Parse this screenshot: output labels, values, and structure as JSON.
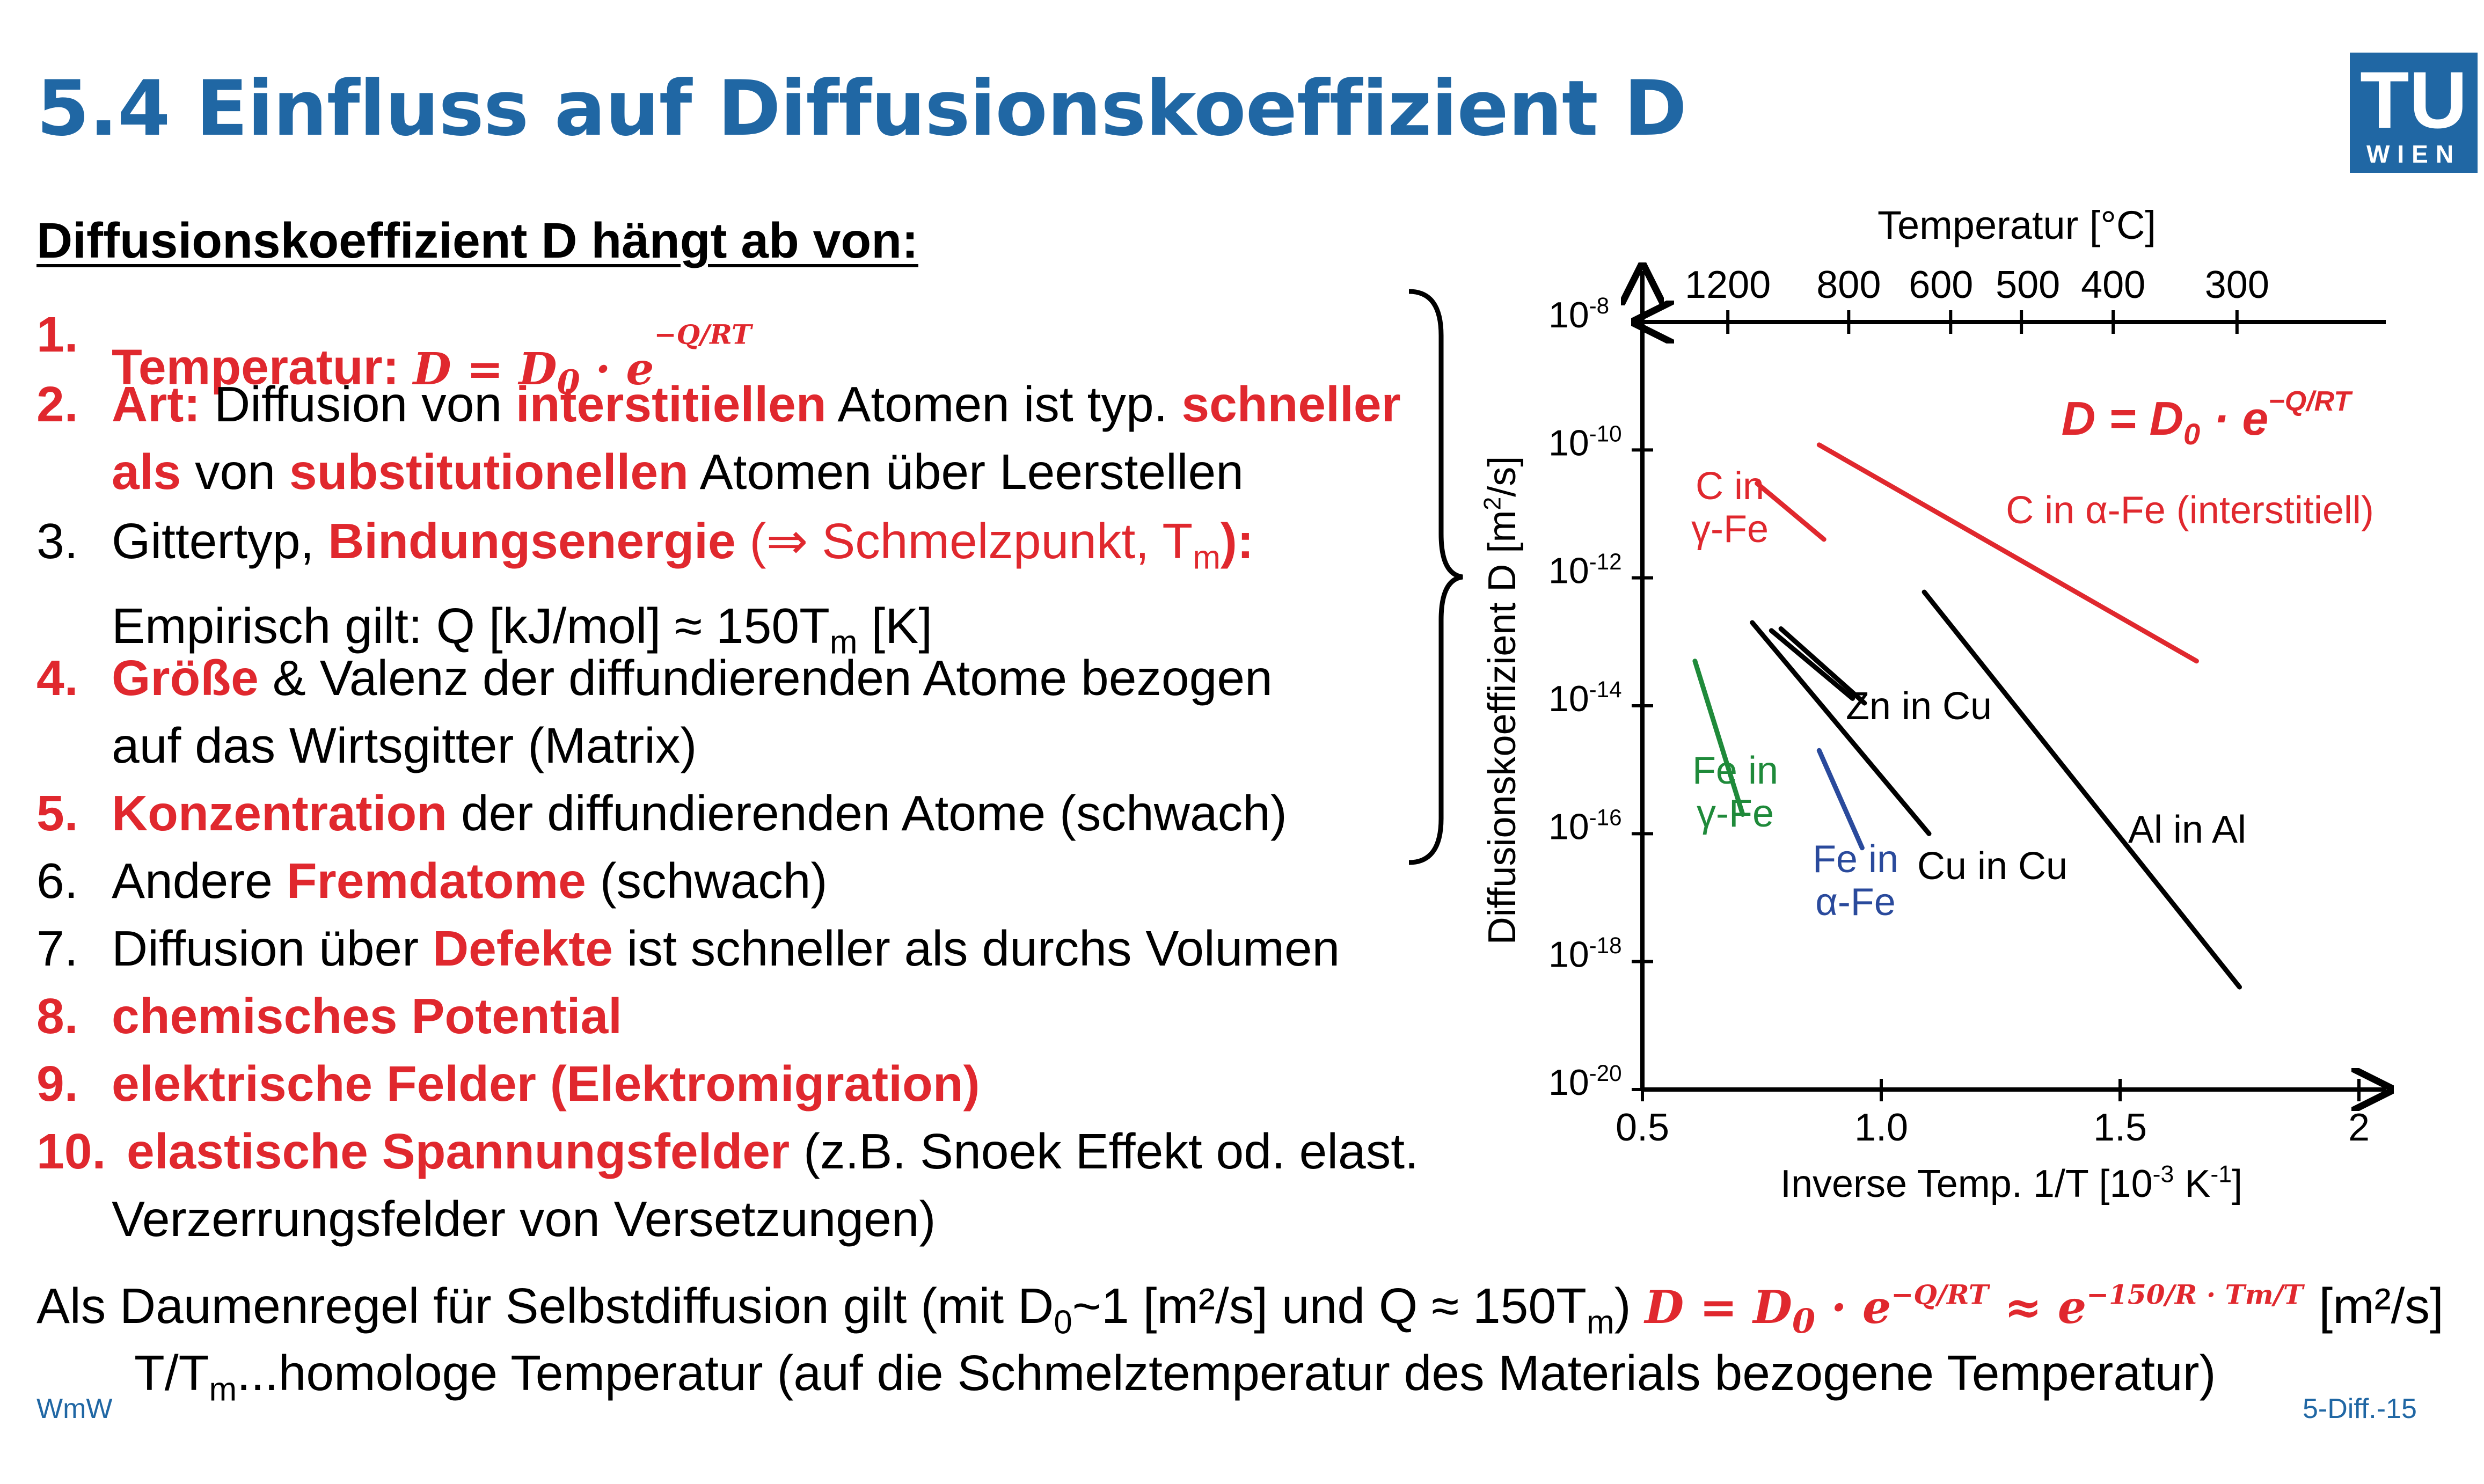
{
  "slide": {
    "title": "5.4 Einfluss auf Diffusionskoeffizient D",
    "logo": {
      "line1": "TU",
      "line2": "WIEN",
      "color": "#2067a4"
    },
    "subheading": "Diffusionskoeffizient D hängt ab von:",
    "colors": {
      "accent_red": "#e0282e",
      "title_blue": "#2067a4"
    }
  },
  "list": {
    "i1": {
      "num": "1.",
      "label": "Temperatur:",
      "formula": "D = D",
      "formula_sub": "0",
      "formula_dot": " · e",
      "exponent": "−Q/RT"
    },
    "i2": {
      "num": "2.",
      "label": "Art:",
      "t1": " Diffusion von ",
      "r1": "interstitiellen",
      "t2": " Atomen ist typ. ",
      "r2": "schneller",
      "r3": "als",
      "t3": " von ",
      "r4": "substitutionellen",
      "t4": " Atomen über Leerstellen"
    },
    "i3": {
      "num": "3.",
      "t1": "Gittertyp, ",
      "r1": "Bindungsenergie",
      "r2": " (⇒ Schmelzpunkt, T",
      "r2sub": "m",
      "r3": "):",
      "l2a": "Empirisch gilt: Q [kJ/mol] ≈ 150T",
      "l2sub": "m",
      "l2b": " [K]"
    },
    "i4": {
      "num": "4.",
      "r1": "Größe",
      "t1": " & Valenz der diffundierenden Atome bezogen",
      "l2": "auf das Wirtsgitter (Matrix)"
    },
    "i5": {
      "num": "5.",
      "r1": "Konzentration",
      "t1": " der diffundierenden Atome (schwach)"
    },
    "i6": {
      "num": "6.",
      "t1": "Andere ",
      "r1": "Fremdatome",
      "t2": " (schwach)"
    },
    "i7": {
      "num": "7.",
      "t1": "Diffusion über ",
      "r1": "Defekte",
      "t2": " ist schneller als durchs Volumen"
    },
    "i8": {
      "num": "8.",
      "r1": "chemisches Potential"
    },
    "i9": {
      "num": "9.",
      "r1": "elektrische Felder (Elektromigration)"
    },
    "i10": {
      "num": "10.",
      "r1": "elastische Spannungsfelder",
      "t1": " (z.B. Snoek Effekt od. elast.",
      "l2": "Verzerrungsfelder von Versetzungen)"
    }
  },
  "rule": {
    "t1": "Als Daumenregel für Selbstdiffusion gilt (mit D",
    "t1sub": "0",
    "t2": "~1 [m²/s] und Q ≈ 150T",
    "t2sub": "m",
    "t3": ")",
    "formula": "D = D",
    "formula_sub": "0",
    "formula_dot": " · e",
    "exp1": "−Q/RT",
    "approx": " ≈ e",
    "exp2": "−150/R · Tm/T",
    "unit": " [m²/s]",
    "line2a": "T/T",
    "line2sub": "m",
    "line2b": "...homologe Temperatur (auf die Schmelztemperatur des Materials bezogene Temperatur)"
  },
  "footer": {
    "left": "WmW",
    "right": "5-Diff.-15"
  },
  "chart_data": {
    "type": "line",
    "title": "",
    "xlabel": "Inverse Temp. 1/T [10-3 K-1]",
    "xlabel_parts": {
      "a": "Inverse Temp. 1/T [10",
      "s1": "-3",
      "b": " K",
      "s2": "-1",
      "c": "]"
    },
    "ylabel": "Diffusionskoeffizient D [m2/s]",
    "ylabel_parts": {
      "a": "Diffusionskoeffizient D [m",
      "s": "2",
      "b": "/s]"
    },
    "top_axis_label": "Temperatur [°C]",
    "top_ticks": [
      "1200",
      "800",
      "600",
      "500",
      "400",
      "300"
    ],
    "top_tick_values_celsius": [
      1200,
      800,
      600,
      500,
      400,
      300
    ],
    "x_ticks": [
      "0.5",
      "1.0",
      "1.5",
      "2"
    ],
    "x_tick_values": [
      0.5,
      1.0,
      1.5,
      2.0
    ],
    "xlim": [
      0.5,
      2.0
    ],
    "y_scale": "log",
    "ylim": [
      1e-20,
      1e-08
    ],
    "y_ticks": [
      {
        "base": "10",
        "exp": "-8",
        "value": 1e-08
      },
      {
        "base": "10",
        "exp": "-10",
        "value": 1e-10
      },
      {
        "base": "10",
        "exp": "-12",
        "value": 1e-12
      },
      {
        "base": "10",
        "exp": "-14",
        "value": 1e-14
      },
      {
        "base": "10",
        "exp": "-16",
        "value": 1e-16
      },
      {
        "base": "10",
        "exp": "-18",
        "value": 1e-18
      },
      {
        "base": "10",
        "exp": "-20",
        "value": 1e-20
      }
    ],
    "formula": {
      "text": "D = D",
      "sub": "0",
      "dot": " · e",
      "exp": "−Q/RT"
    },
    "series": [
      {
        "name": "C in α-Fe (interstitiell)",
        "color": "#e0282e",
        "x": [
          0.87,
          1.66
        ],
        "y": [
          1.2e-10,
          5e-14
        ],
        "labels": [
          "C in α-Fe (interstitiell)"
        ]
      },
      {
        "name": "C in γ-Fe",
        "color": "#e0282e",
        "x": [
          0.74,
          0.88
        ],
        "y": [
          3e-11,
          4e-12
        ],
        "labels": [
          "C in",
          "γ-Fe"
        ]
      },
      {
        "name": "Fe in γ-Fe",
        "color": "#1f8a3a",
        "x": [
          0.61,
          0.71
        ],
        "y": [
          5e-14,
          2e-16
        ],
        "labels": [
          "Fe in",
          "γ-Fe"
        ]
      },
      {
        "name": "Fe in α-Fe",
        "color": "#2a4a9c",
        "x": [
          0.87,
          0.96
        ],
        "y": [
          2e-15,
          6e-17
        ],
        "labels": [
          "Fe in",
          "α-Fe"
        ]
      },
      {
        "name": "Zn in Cu",
        "color": "#000000",
        "x": [
          0.77,
          0.94
        ],
        "y": [
          1.5e-13,
          1.3e-14
        ],
        "labels": [
          "Zn in Cu"
        ]
      },
      {
        "name": "Cu in Cu",
        "color": "#000000",
        "x": [
          0.73,
          1.1
        ],
        "y": [
          2e-13,
          1e-16
        ],
        "labels": [
          "Cu in Cu"
        ]
      },
      {
        "name": "Al in Al",
        "color": "#000000",
        "x": [
          1.09,
          1.75
        ],
        "y": [
          6e-13,
          4e-19
        ],
        "labels": [
          "Al in Al"
        ]
      }
    ],
    "grid": false,
    "legend": "none"
  }
}
